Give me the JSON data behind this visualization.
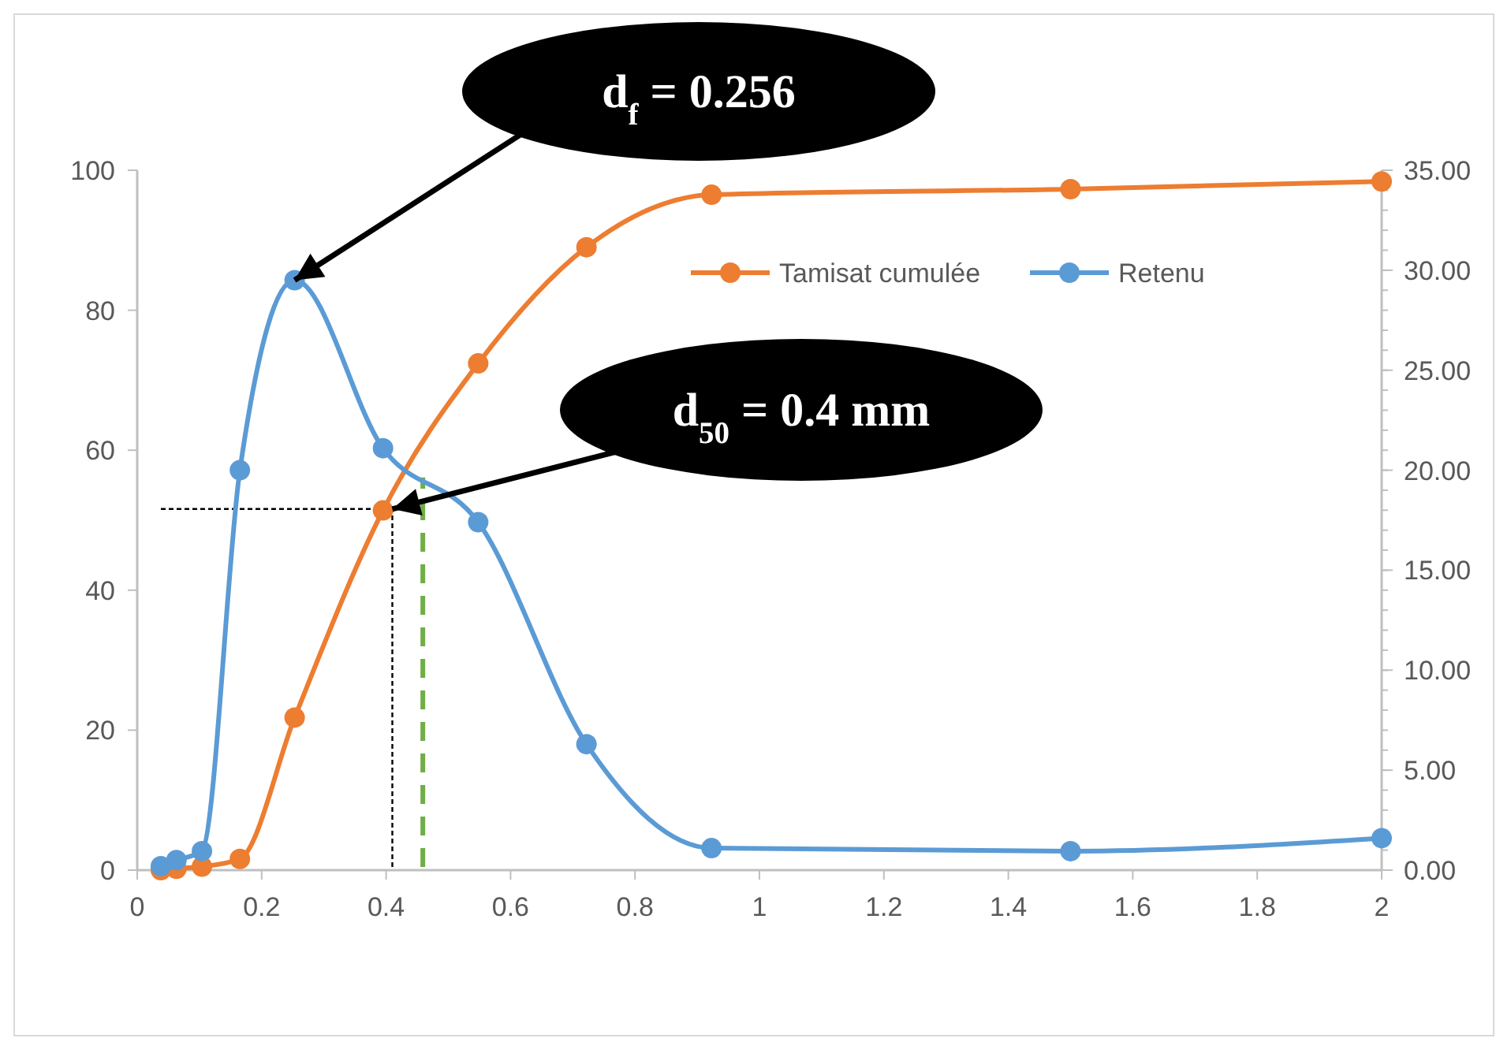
{
  "chart_data": {
    "type": "line",
    "x": [
      0.038,
      0.063,
      0.104,
      0.165,
      0.253,
      0.395,
      0.548,
      0.722,
      0.923,
      1.5,
      2
    ],
    "series": [
      {
        "name": "Tamisat cumulée",
        "color": "#ed7d31",
        "values": [
          0,
          0.2,
          0.5,
          1.6,
          21.8,
          51.4,
          72.4,
          89,
          96.5,
          97.3,
          98.4
        ]
      },
      {
        "name": "Retenu",
        "color": "#5b9bd5",
        "axis": "y2",
        "values": [
          0.2,
          0.5,
          0.95,
          20,
          29.5,
          21.1,
          17.4,
          6.3,
          1.1,
          0.95,
          1.6
        ]
      }
    ],
    "xlim": [
      0,
      2
    ],
    "xticks": [
      0,
      0.2,
      0.4,
      0.6,
      0.8,
      1,
      1.2,
      1.4,
      1.6,
      1.8,
      2
    ],
    "ylim": [
      0,
      100
    ],
    "yticks": [
      0,
      20,
      40,
      60,
      80,
      100
    ],
    "y2lim": [
      0,
      35
    ],
    "y2ticks": [
      {
        "value": 0,
        "label": "0.00"
      },
      {
        "value": 5,
        "label": "5.00"
      },
      {
        "value": 10,
        "label": "10.00"
      },
      {
        "value": 15,
        "label": "15.00"
      },
      {
        "value": 20,
        "label": "20.00"
      },
      {
        "value": 25,
        "label": "25.00"
      },
      {
        "value": 30,
        "label": "30.00"
      },
      {
        "value": 35,
        "label": "35.00"
      }
    ],
    "marker": "circle",
    "legend": "top right",
    "grid": false,
    "ref_lines": [
      {
        "axis": "y",
        "value": 51.6,
        "color": "#000000",
        "line_style": "dotted"
      },
      {
        "axis": "x",
        "value": 0.41,
        "color": "#000000",
        "line_style": "dotted"
      },
      {
        "axis": "x",
        "value": 0.459,
        "color": "#70ad47",
        "line_style": "dashed"
      }
    ],
    "annotations": [
      "d$_{f}$ = 0.256",
      {
        "text": "d$_{50}$ = 0.4 mm",
        "x": 0.41,
        "y": 51.6
      }
    ]
  }
}
